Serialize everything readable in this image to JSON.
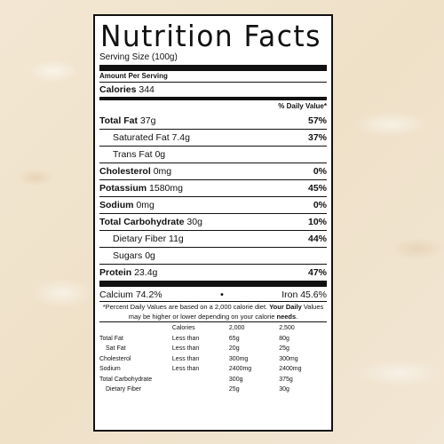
{
  "label": {
    "title": "Nutrition Facts",
    "serving_size": "Serving Size  (100g)",
    "amount_per_serving": "Amount Per Serving",
    "calories_label": "Calories",
    "calories_value": "344",
    "dv_header": "% Daily Value*",
    "nutrients": [
      {
        "name": "Total Fat",
        "amount": "37g",
        "pct": "57%",
        "bold": true,
        "indent": false
      },
      {
        "name": "Saturated Fat",
        "amount": "7.4g",
        "pct": "37%",
        "bold": false,
        "indent": true
      },
      {
        "name": "Trans Fat",
        "amount": "0g",
        "pct": "",
        "bold": false,
        "indent": true
      },
      {
        "name": "Cholesterol",
        "amount": "0mg",
        "pct": "0%",
        "bold": true,
        "indent": false
      },
      {
        "name": "Potassium",
        "amount": "1580mg",
        "pct": "45%",
        "bold": true,
        "indent": false
      },
      {
        "name": "Sodium",
        "amount": "0mg",
        "pct": "0%",
        "bold": true,
        "indent": false
      },
      {
        "name": "Total Carbohydrate",
        "amount": "30g",
        "pct": "10%",
        "bold": true,
        "indent": false
      },
      {
        "name": "Dietary Fiber",
        "amount": "11g",
        "pct": "44%",
        "bold": false,
        "indent": true
      },
      {
        "name": "Sugars",
        "amount": "0g",
        "pct": "",
        "bold": false,
        "indent": true
      },
      {
        "name": "Protein",
        "amount": "23.4g",
        "pct": "47%",
        "bold": true,
        "indent": false
      }
    ],
    "calcium": "Calcium 74.2%",
    "vitamin_bullet": "•",
    "iron": "Iron 45.6%",
    "footnote_plain": "*Percent Daily Values are based on a 2,000 calorie diet. ",
    "footnote_bold1": "Your Daily",
    "footnote_mid": "Values may be higher or lower depending on your calorie ",
    "footnote_bold2": "needs",
    "footnote_end": ".",
    "table_header": [
      "",
      "Calories",
      "2,000",
      "2,500"
    ],
    "table_rows": [
      [
        "Total Fat",
        "Less than",
        "65g",
        "80g"
      ],
      [
        "Sat Fat",
        "Less than",
        "20g",
        "25g"
      ],
      [
        "Cholesterol",
        "Less than",
        "300mg",
        "300mg"
      ],
      [
        "Sodium",
        "Less than",
        "2400mg",
        "2400mg"
      ],
      [
        "Total Carbohydrate",
        "",
        "300g",
        "375g"
      ],
      [
        "Dietary Fiber",
        "",
        "25g",
        "30g"
      ]
    ]
  },
  "colors": {
    "background": "#f1e6d2",
    "label": "#ffffff",
    "ink": "#111111"
  }
}
